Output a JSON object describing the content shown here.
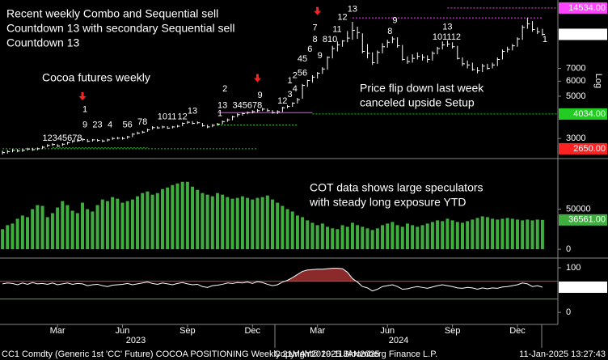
{
  "x_axis": {
    "categories": [
      null,
      null,
      null,
      null,
      null,
      null,
      null,
      null,
      null,
      null,
      null,
      "Mar",
      null,
      null,
      null,
      null,
      null,
      null,
      null,
      null,
      null,
      null,
      null,
      null,
      "Jun",
      null,
      null,
      null,
      null,
      null,
      null,
      null,
      null,
      null,
      null,
      null,
      null,
      "Sep",
      null,
      null,
      null,
      null,
      null,
      null,
      null,
      null,
      null,
      null,
      null,
      null,
      "Dec",
      null,
      null,
      null,
      null,
      null,
      null,
      null,
      null,
      null,
      null,
      null,
      null,
      "Mar",
      null,
      null,
      null,
      null,
      null,
      null,
      null,
      null,
      null,
      null,
      null,
      null,
      null,
      "Jun",
      null,
      null,
      null,
      null,
      null,
      null,
      null,
      null,
      null,
      null,
      null,
      null,
      "Sep",
      null,
      null,
      null,
      null,
      null,
      null,
      null,
      null,
      null,
      null,
      null,
      null,
      "Dec",
      null,
      null,
      null,
      null,
      null
    ],
    "years": [
      "2023",
      "2024"
    ]
  },
  "footer": {
    "left": "CC1 Comdty (Generic 1st 'CC' Future) COCOA POSITIONING  Weekly 21MAY2019-11JAN2025",
    "center": "Copyright© 2025 Bloomberg Finance L.P.",
    "right": "11-Jan-2025 13:27:43"
  },
  "chart_data": [
    {
      "type": "ohlc",
      "log": true,
      "scale_label": "Log",
      "ylim": [
        2400,
        15700
      ],
      "yticks": [
        3000,
        5000,
        6000,
        7000
      ],
      "color": "#ffffff",
      "notes": [
        [
          "Recent weekly Combo and Sequential sell",
          "Countdown 13 with secondary Sequential sell",
          "Countdown 13"
        ],
        [
          "Cocoa futures weekly"
        ],
        [
          "Price flip down last week",
          "canceled upside Setup"
        ]
      ],
      "close": [
        2530,
        2560,
        2600,
        2580,
        2600,
        2640,
        2620,
        2650,
        2700,
        2760,
        2790,
        2740,
        2800,
        2850,
        2900,
        2920,
        2960,
        2900,
        2950,
        2930,
        2910,
        2950,
        3000,
        3010,
        3000,
        3060,
        3160,
        3200,
        3240,
        3330,
        3420,
        3410,
        3450,
        3400,
        3450,
        3480,
        3600,
        3650,
        3600,
        3630,
        3500,
        3450,
        3520,
        3570,
        3680,
        3760,
        3900,
        4000,
        4050,
        4100,
        4150,
        4200,
        4280,
        4200,
        4100,
        4150,
        4350,
        4420,
        4600,
        4800,
        5700,
        6050,
        6300,
        6600,
        6950,
        8000,
        8900,
        9300,
        9750,
        10100,
        11100,
        10800,
        8600,
        8400,
        7500,
        8500,
        9100,
        9600,
        10000,
        9200,
        7800,
        7600,
        7900,
        8100,
        8000,
        7800,
        8400,
        8900,
        9300,
        9400,
        9100,
        7900,
        7400,
        7300,
        6900,
        6800,
        7200,
        7000,
        7300,
        7800,
        8600,
        8800,
        9200,
        10000,
        11500,
        12000,
        11200,
        10900,
        10570
      ],
      "high": [
        2590,
        2610,
        2640,
        2640,
        2650,
        2680,
        2680,
        2690,
        2740,
        2800,
        2830,
        2800,
        2830,
        2880,
        2940,
        2970,
        3010,
        2980,
        2980,
        2980,
        2960,
        2990,
        3050,
        3060,
        3060,
        3100,
        3200,
        3260,
        3290,
        3380,
        3480,
        3480,
        3500,
        3480,
        3490,
        3530,
        3640,
        3710,
        3700,
        3690,
        3620,
        3540,
        3570,
        3620,
        3720,
        3820,
        3950,
        4070,
        4100,
        4160,
        4220,
        4280,
        4340,
        4310,
        4230,
        4220,
        4400,
        4500,
        4650,
        4900,
        5800,
        6100,
        6450,
        6700,
        7100,
        8100,
        9200,
        9700,
        9850,
        11000,
        12300,
        11600,
        10700,
        9400,
        8500,
        8700,
        9500,
        9900,
        10300,
        10200,
        9300,
        8100,
        8300,
        8500,
        8300,
        8200,
        8600,
        9100,
        9700,
        9800,
        9600,
        9200,
        8000,
        7700,
        7500,
        7100,
        7400,
        7400,
        7500,
        8000,
        8800,
        9100,
        9400,
        10200,
        11800,
        12900,
        12400,
        11500,
        11300
      ],
      "low": [
        2470,
        2500,
        2540,
        2540,
        2550,
        2590,
        2580,
        2600,
        2640,
        2700,
        2740,
        2710,
        2740,
        2790,
        2850,
        2880,
        2900,
        2870,
        2890,
        2890,
        2870,
        2890,
        2950,
        2970,
        2960,
        2990,
        3050,
        3150,
        3190,
        3250,
        3340,
        3370,
        3390,
        3370,
        3390,
        3430,
        3480,
        3580,
        3560,
        3570,
        3460,
        3400,
        3440,
        3500,
        3560,
        3670,
        3740,
        3890,
        3960,
        4020,
        4060,
        4120,
        4180,
        4150,
        4050,
        4030,
        4130,
        4320,
        4400,
        4580,
        4850,
        5600,
        5900,
        6200,
        6550,
        6900,
        7900,
        8600,
        9100,
        9600,
        9900,
        10000,
        8400,
        7900,
        7300,
        7400,
        8400,
        9000,
        9500,
        9000,
        7700,
        7400,
        7500,
        7800,
        7700,
        7500,
        7700,
        8300,
        8800,
        9100,
        8900,
        7800,
        7200,
        7000,
        6800,
        6600,
        6700,
        6900,
        7000,
        7200,
        7800,
        8500,
        8700,
        9100,
        9900,
        11300,
        10900,
        10600,
        10400
      ],
      "levels": [
        {
          "value": 14534,
          "from": 89,
          "to": 111,
          "color": "#ff44ff",
          "dash": true
        },
        {
          "value": 12900,
          "from": 70,
          "to": 108,
          "color": "#ff44ff",
          "dash": true
        },
        {
          "value": 4100,
          "from": 43,
          "to": 62,
          "color": "#ff44ff",
          "dash": false
        },
        {
          "value": 4034,
          "from": 62,
          "to": 111,
          "color": "#22cc22",
          "dash": true
        },
        {
          "value": 3530,
          "from": 43,
          "to": 59,
          "color": "#22cc22",
          "dash": true
        },
        {
          "value": 2680,
          "from": 10,
          "to": 29,
          "color": "#22cc22",
          "dash": true
        },
        {
          "value": 2650,
          "from": 0,
          "to": 51,
          "color": "#22cc22",
          "dash": true
        }
      ],
      "value_labels": [
        {
          "value": 14534,
          "label": "14534.00",
          "color": "#ff44ff"
        },
        {
          "value": 10570,
          "label": "10570.00",
          "color": "#ffffff"
        },
        {
          "value": 4034,
          "label": "4034.00",
          "color": "#22cc22"
        },
        {
          "value": 2650,
          "label": "2650.00",
          "color": "#ff2222"
        }
      ],
      "arrows": [
        {
          "x": 16,
          "y": 4950,
          "color": "#ff2222"
        },
        {
          "x": 51,
          "y": 6170,
          "color": "#ff2222"
        },
        {
          "x": 63,
          "y": 13870,
          "color": "#ff2222"
        }
      ],
      "annotations": [
        {
          "text": "12345678",
          "x": 8,
          "y": 3000,
          "color": "#33dd33"
        },
        {
          "text": "9",
          "x": 16,
          "y": 3530,
          "color": "#33dd33",
          "big": true
        },
        {
          "text": "23",
          "x": 18,
          "y": 3530,
          "color": "#ff2222"
        },
        {
          "text": "4",
          "x": 21,
          "y": 3530,
          "color": "#ff2222"
        },
        {
          "text": "1",
          "x": 16,
          "y": 4240,
          "color": "#ff2222"
        },
        {
          "text": "56",
          "x": 24,
          "y": 3530,
          "color": "#ff2222"
        },
        {
          "text": "78",
          "x": 27,
          "y": 3660,
          "color": "#ff2222"
        },
        {
          "text": "1011",
          "x": 31,
          "y": 3890,
          "color": "#ff2222"
        },
        {
          "text": "12",
          "x": 35,
          "y": 3890,
          "color": "#ff2222"
        },
        {
          "text": "13",
          "x": 37,
          "y": 4170,
          "color": "#ff2222",
          "big": true
        },
        {
          "text": "1",
          "x": 43,
          "y": 4040,
          "color": "#33dd33"
        },
        {
          "text": "13",
          "x": 43,
          "y": 4460,
          "color": "#ff33ff",
          "big": true
        },
        {
          "text": "2",
          "x": 44,
          "y": 5450,
          "color": "#33dd33"
        },
        {
          "text": "345678",
          "x": 46,
          "y": 4460,
          "color": "#33dd33"
        },
        {
          "text": "9",
          "x": 51,
          "y": 5050,
          "color": "#33dd33",
          "big": true
        },
        {
          "text": "12",
          "x": 55,
          "y": 4720,
          "color": "#33dd33"
        },
        {
          "text": "3",
          "x": 57,
          "y": 5100,
          "color": "#33dd33"
        },
        {
          "text": "4",
          "x": 58,
          "y": 5450,
          "color": "#33dd33"
        },
        {
          "text": "56",
          "x": 59,
          "y": 6610,
          "color": "#33dd33"
        },
        {
          "text": "1",
          "x": 57,
          "y": 6000,
          "color": "#ff2222"
        },
        {
          "text": "2",
          "x": 58,
          "y": 6420,
          "color": "#ff2222"
        },
        {
          "text": "45",
          "x": 59,
          "y": 7850,
          "color": "#ff2222"
        },
        {
          "text": "6",
          "x": 61,
          "y": 8820,
          "color": "#ff2222"
        },
        {
          "text": "8",
          "x": 62,
          "y": 9900,
          "color": "#33dd33"
        },
        {
          "text": "9",
          "x": 63,
          "y": 8160,
          "color": "#33dd33",
          "big": true
        },
        {
          "text": "7",
          "x": 62,
          "y": 11440,
          "color": "#ff2222"
        },
        {
          "text": "810",
          "x": 64,
          "y": 9900,
          "color": "#ff2222"
        },
        {
          "text": "11",
          "x": 66,
          "y": 11220,
          "color": "#ff2222"
        },
        {
          "text": "12",
          "x": 67,
          "y": 12960,
          "color": "#ff2222",
          "big": true
        },
        {
          "text": "13",
          "x": 69,
          "y": 14270,
          "color": "#ff33ff",
          "big": true
        },
        {
          "text": "8",
          "x": 77,
          "y": 10900,
          "color": "#ff2222"
        },
        {
          "text": "9",
          "x": 78,
          "y": 12470,
          "color": "#ff2222"
        },
        {
          "text": "101112",
          "x": 86,
          "y": 10190,
          "color": "#ff2222"
        },
        {
          "text": "13",
          "x": 88,
          "y": 11550,
          "color": "#ff2222",
          "big": true
        },
        {
          "text": "1",
          "x": 108,
          "y": 9900,
          "color": "#33dd33"
        }
      ]
    },
    {
      "type": "bar",
      "ylim": [
        -10000,
        111000
      ],
      "yticks": [
        0,
        50000
      ],
      "color": "#3fae3f",
      "notes": [
        [
          "COT data shows large speculators",
          "with steady long exposure YTD"
        ]
      ],
      "values": [
        25000,
        30000,
        32000,
        38000,
        42000,
        40000,
        50000,
        55000,
        54000,
        40000,
        45000,
        52000,
        60000,
        55000,
        48000,
        45000,
        58000,
        50000,
        47000,
        55000,
        62000,
        60000,
        65000,
        63000,
        58000,
        60000,
        62000,
        66000,
        70000,
        72000,
        68000,
        70000,
        75000,
        77000,
        80000,
        82000,
        84000,
        84000,
        78000,
        74000,
        70000,
        68000,
        66000,
        70000,
        68000,
        65000,
        63000,
        64000,
        66000,
        64000,
        62000,
        64000,
        65000,
        67000,
        62000,
        58000,
        54000,
        50000,
        47000,
        42000,
        40000,
        36000,
        33000,
        30000,
        32000,
        28000,
        26000,
        25000,
        30000,
        28000,
        33000,
        30000,
        28000,
        26000,
        24000,
        26000,
        30000,
        32000,
        34000,
        30000,
        28000,
        32000,
        30000,
        28000,
        30000,
        32000,
        34000,
        36000,
        35000,
        38000,
        36000,
        34000,
        33000,
        35000,
        37000,
        39000,
        41000,
        40000,
        38000,
        37000,
        38000,
        39000,
        38000,
        37000,
        36000,
        37000,
        36000,
        37000,
        36561
      ],
      "value_labels": [
        {
          "value": 36561,
          "label": "36561.00",
          "color": "#3fae3f"
        }
      ]
    },
    {
      "type": "line",
      "ylim": [
        -25,
        120
      ],
      "yticks": [
        0,
        100
      ],
      "color": "#ffffff",
      "overbought": 70,
      "oversold": 30,
      "over_color": "#ff3333",
      "under_color": "#22cc22",
      "fill_color": "#8b2a2a",
      "values": [
        64,
        66,
        65,
        62,
        66,
        63,
        67,
        64,
        65,
        63,
        66,
        62,
        64,
        66,
        63,
        65,
        64,
        60,
        62,
        63,
        60,
        58,
        61,
        62,
        63,
        65,
        62,
        64,
        66,
        68,
        65,
        63,
        66,
        64,
        62,
        65,
        67,
        64,
        62,
        63,
        58,
        56,
        60,
        61,
        63,
        66,
        65,
        67,
        66,
        68,
        65,
        69,
        67,
        63,
        60,
        62,
        68,
        72,
        78,
        85,
        92,
        95,
        96,
        97,
        97,
        98,
        99,
        99,
        98,
        90,
        76,
        68,
        58,
        55,
        48,
        52,
        58,
        60,
        62,
        58,
        52,
        53,
        56,
        58,
        56,
        54,
        57,
        60,
        62,
        60,
        58,
        55,
        54,
        56,
        55,
        52,
        55,
        53,
        55,
        54,
        57,
        58,
        60,
        62,
        66,
        64,
        58,
        60,
        56.5954
      ],
      "value_labels": [
        {
          "value": 56.5954,
          "label": "56.5954",
          "color": "#ffffff"
        }
      ]
    }
  ]
}
